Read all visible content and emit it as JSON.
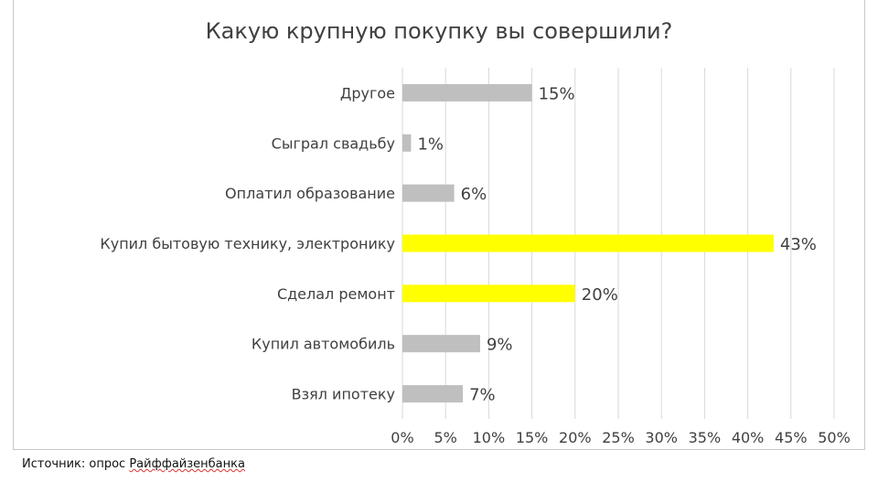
{
  "chart_data": {
    "type": "bar",
    "orientation": "horizontal",
    "title": "Какую крупную покупку вы совершили?",
    "categories": [
      "Другое",
      "Сыграл свадьбу",
      "Оплатил образование",
      "Купил бытовую технику, электронику",
      "Сделал ремонт",
      "Купил автомобиль",
      "Взял ипотеку"
    ],
    "values": [
      15,
      1,
      6,
      43,
      20,
      9,
      7
    ],
    "value_labels": [
      "15%",
      "1%",
      "6%",
      "43%",
      "20%",
      "9%",
      "7%"
    ],
    "highlighted": [
      false,
      false,
      false,
      true,
      true,
      false,
      false
    ],
    "xlim": [
      0,
      50
    ],
    "xticks": [
      "0%",
      "5%",
      "10%",
      "15%",
      "20%",
      "25%",
      "30%",
      "35%",
      "40%",
      "45%",
      "50%"
    ],
    "grid": true,
    "colors": {
      "default": "#bfbfbf",
      "highlight": "#ffff00",
      "grid": "#d9d9d9"
    }
  },
  "source": {
    "prefix": "Источник: опрос ",
    "name": "Райффайзенбанка"
  }
}
